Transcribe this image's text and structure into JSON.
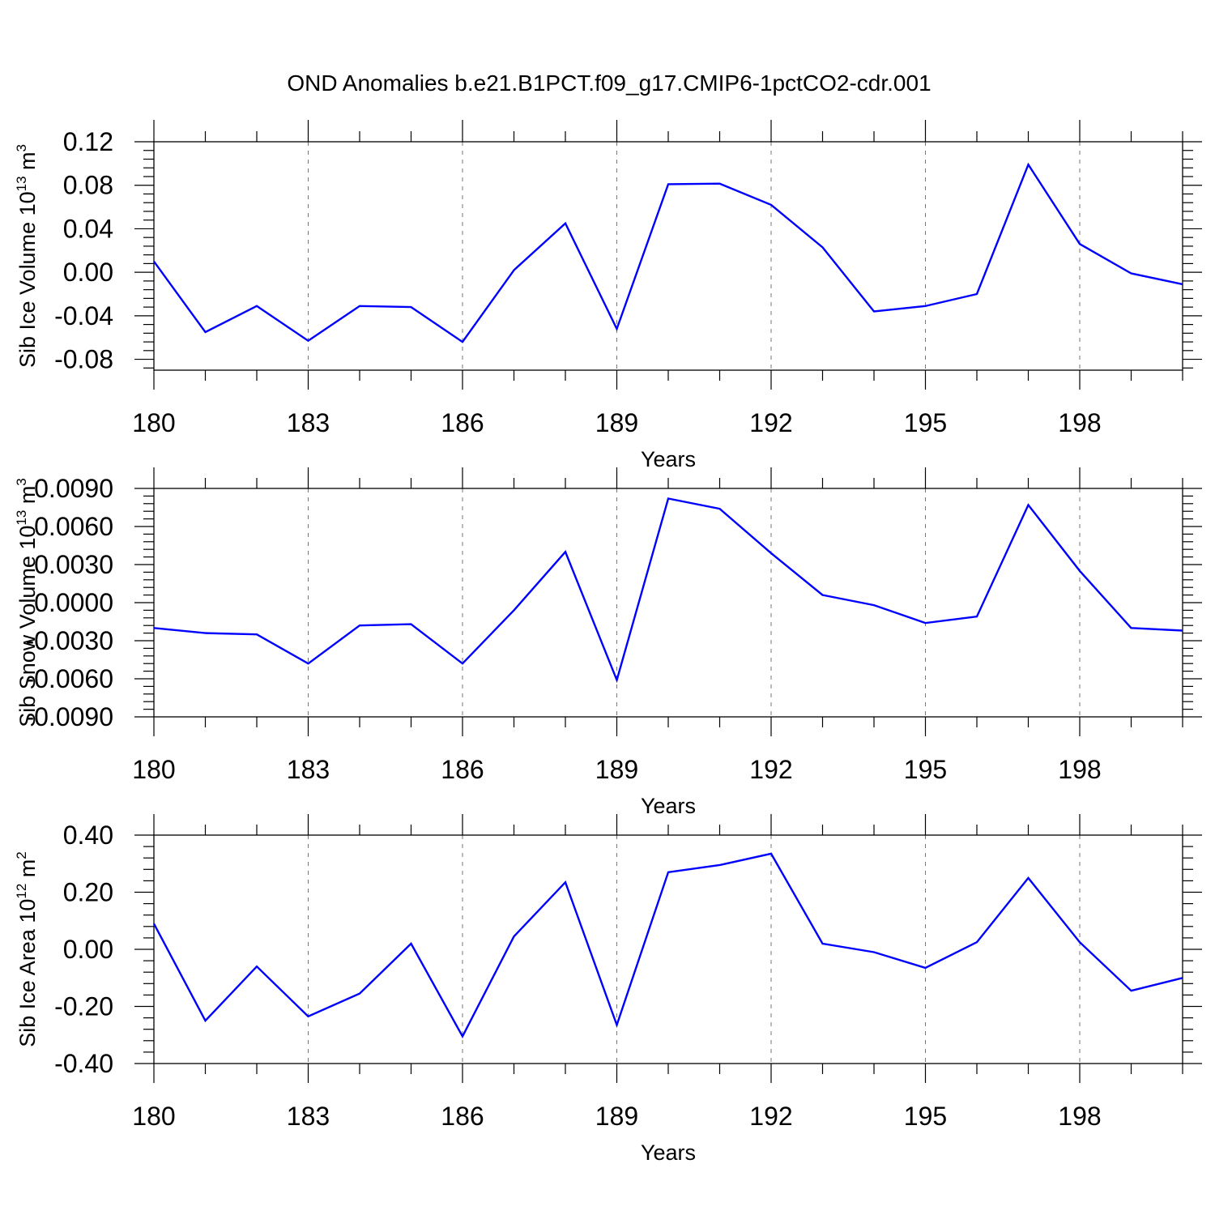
{
  "title": "OND Anomalies b.e21.B1PCT.f09_g17.CMIP6-1pctCO2-cdr.001",
  "colors": {
    "series": "#0000ff",
    "axis": "#000000",
    "grid": "#777777"
  },
  "chart_data": [
    {
      "type": "line",
      "ylabel": {
        "base": "Sib Ice Volume 10",
        "exp": "13",
        "unit": " m",
        "unit_exp": "3"
      },
      "xlabel": "Years",
      "x_ticks": [
        "180",
        "183",
        "186",
        "189",
        "192",
        "195",
        "198"
      ],
      "x_tick_values": [
        180,
        183,
        186,
        189,
        192,
        195,
        198
      ],
      "y_ticks": [
        "0.12",
        "0.08",
        "0.04",
        "0.00",
        "-0.04",
        "-0.08"
      ],
      "y_tick_values": [
        0.12,
        0.08,
        0.04,
        0.0,
        -0.04,
        -0.08
      ],
      "xlim": [
        180,
        200
      ],
      "ylim": [
        -0.09,
        0.12
      ],
      "grid": "vertical dashed at labeled years",
      "x": [
        180,
        181,
        182,
        183,
        184,
        185,
        186,
        187,
        188,
        189,
        190,
        191,
        192,
        193,
        194,
        195,
        196,
        197,
        198,
        199,
        200
      ],
      "y": [
        0.01,
        -0.055,
        -0.031,
        -0.063,
        -0.031,
        -0.032,
        -0.064,
        0.002,
        0.045,
        -0.052,
        0.081,
        0.0815,
        0.062,
        0.023,
        -0.036,
        -0.031,
        -0.02,
        0.099,
        0.026,
        -0.001,
        -0.011
      ]
    },
    {
      "type": "line",
      "ylabel": {
        "base": "Sib Snow Volume 10",
        "exp": "13",
        "unit": " m",
        "unit_exp": "3"
      },
      "xlabel": "Years",
      "x_ticks": [
        "180",
        "183",
        "186",
        "189",
        "192",
        "195",
        "198"
      ],
      "x_tick_values": [
        180,
        183,
        186,
        189,
        192,
        195,
        198
      ],
      "y_ticks": [
        "0.0090",
        "0.0060",
        "0.0030",
        "0.0000",
        "-0.0030",
        "-0.0060",
        "-0.0090"
      ],
      "y_tick_values": [
        0.009,
        0.006,
        0.003,
        0.0,
        -0.003,
        -0.006,
        -0.009
      ],
      "xlim": [
        180,
        200
      ],
      "ylim": [
        -0.009,
        0.009
      ],
      "grid": "vertical dashed at labeled years",
      "x": [
        180,
        181,
        182,
        183,
        184,
        185,
        186,
        187,
        188,
        189,
        190,
        191,
        192,
        193,
        194,
        195,
        196,
        197,
        198,
        199,
        200
      ],
      "y": [
        -0.002,
        -0.0024,
        -0.0025,
        -0.0048,
        -0.0018,
        -0.0017,
        -0.0048,
        -0.0006,
        0.004,
        -0.0061,
        0.0082,
        0.0074,
        0.0039,
        0.0006,
        -0.0002,
        -0.0016,
        -0.0011,
        0.0077,
        0.0025,
        -0.002,
        -0.0022
      ]
    },
    {
      "type": "line",
      "ylabel": {
        "base": "Sib Ice Area 10",
        "exp": "12",
        "unit": " m",
        "unit_exp": "2"
      },
      "xlabel": "Years",
      "x_ticks": [
        "180",
        "183",
        "186",
        "189",
        "192",
        "195",
        "198"
      ],
      "x_tick_values": [
        180,
        183,
        186,
        189,
        192,
        195,
        198
      ],
      "y_ticks": [
        "0.40",
        "0.20",
        "0.00",
        "-0.20",
        "-0.40"
      ],
      "y_tick_values": [
        0.4,
        0.2,
        0.0,
        -0.2,
        -0.4
      ],
      "xlim": [
        180,
        200
      ],
      "ylim": [
        -0.4,
        0.4
      ],
      "grid": "vertical dashed at labeled years",
      "x": [
        180,
        181,
        182,
        183,
        184,
        185,
        186,
        187,
        188,
        189,
        190,
        191,
        192,
        193,
        194,
        195,
        196,
        197,
        198,
        199,
        200
      ],
      "y": [
        0.09,
        -0.25,
        -0.06,
        -0.235,
        -0.155,
        0.02,
        -0.305,
        0.045,
        0.235,
        -0.265,
        0.27,
        0.295,
        0.335,
        0.02,
        -0.01,
        -0.065,
        0.025,
        0.25,
        0.025,
        -0.145,
        -0.1
      ]
    }
  ]
}
